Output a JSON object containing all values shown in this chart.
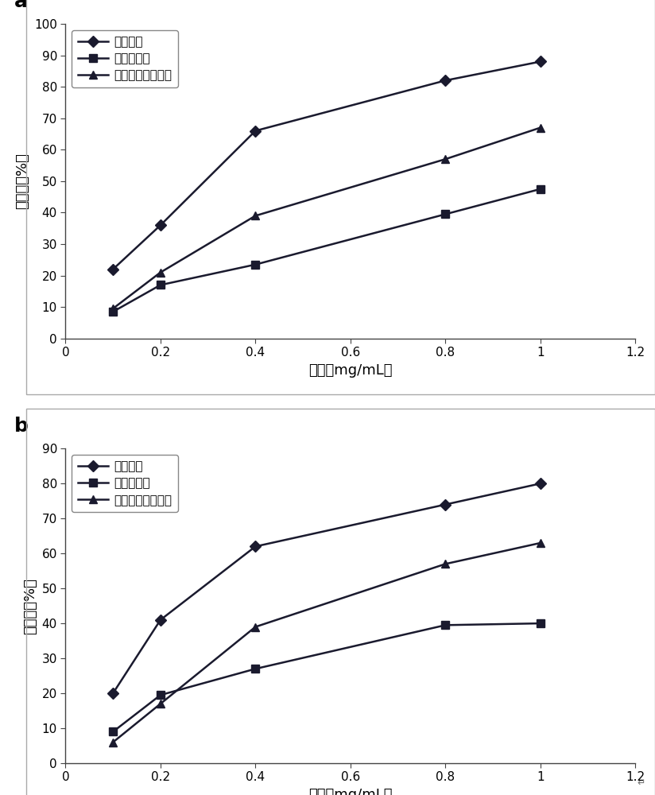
{
  "chart_a": {
    "label": "a",
    "x": [
      0.1,
      0.2,
      0.4,
      0.8,
      1.0
    ],
    "series": [
      {
        "name": "阿卡波糖",
        "y": [
          22,
          36,
          66,
          82,
          88
        ],
        "marker": "D"
      },
      {
        "name": "辣木叶多糖",
        "y": [
          8.5,
          17,
          23.5,
          39.5,
          47.5
        ],
        "marker": "s"
      },
      {
        "name": "乙酰化辣木叶多糖",
        "y": [
          9.5,
          21,
          39,
          57,
          67
        ],
        "marker": "^"
      }
    ],
    "ylim": [
      0,
      100
    ],
    "yticks": [
      0,
      10,
      20,
      30,
      40,
      50,
      60,
      70,
      80,
      90,
      100
    ],
    "xlim": [
      0,
      1.2
    ],
    "xticks": [
      0,
      0.2,
      0.4,
      0.6,
      0.8,
      1.0,
      1.2
    ],
    "xlabel": "浓度（mg/mL）",
    "ylabel": "抑制率（%）"
  },
  "chart_b": {
    "label": "b",
    "x": [
      0.1,
      0.2,
      0.4,
      0.8,
      1.0
    ],
    "series": [
      {
        "name": "阿卡波糖",
        "y": [
          20,
          41,
          62,
          74,
          80
        ],
        "marker": "D"
      },
      {
        "name": "辣木叶多糖",
        "y": [
          9,
          19.5,
          27,
          39.5,
          40
        ],
        "marker": "s"
      },
      {
        "name": "乙酰化辣木叶多糖",
        "y": [
          6,
          17,
          39,
          57,
          63
        ],
        "marker": "^"
      }
    ],
    "ylim": [
      0,
      90
    ],
    "yticks": [
      0,
      10,
      20,
      30,
      40,
      50,
      60,
      70,
      80,
      90
    ],
    "xlim": [
      0,
      1.2
    ],
    "xticks": [
      0,
      0.2,
      0.4,
      0.6,
      0.8,
      1.0,
      1.2
    ],
    "xlabel": "浓度（mg/mL）",
    "ylabel": "抑制率（%）"
  },
  "line_color": "#1a1a2e",
  "marker_size": 7,
  "line_width": 1.8,
  "font_size_label": 13,
  "font_size_tick": 11,
  "font_size_legend": 11,
  "font_size_panel_label": 18,
  "background_color": "#ffffff",
  "panel_bg": "#f5f5f5",
  "border_color": "#888888"
}
